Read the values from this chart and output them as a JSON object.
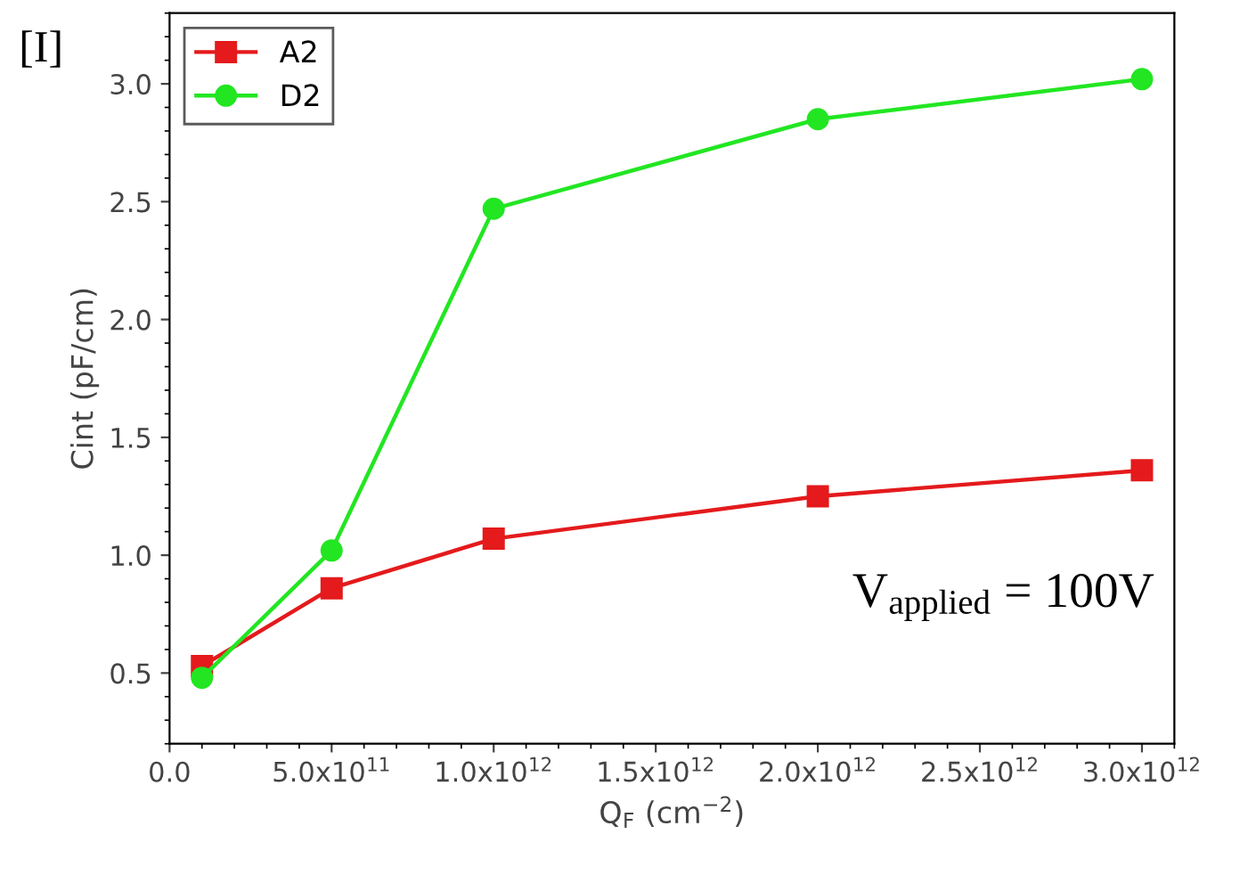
{
  "chart_data": {
    "type": "line",
    "xlabel": "Q$_{F}$ (cm$^{−2}$)",
    "ylabel": "Cint (pF/cm)",
    "annotations": [
      "[I]",
      "V$_{applied}$ = 100V"
    ],
    "x": [
      100000000000.0,
      500000000000.0,
      1000000000000.0,
      2000000000000.0,
      3000000000000.0
    ],
    "series": [
      {
        "name": "A2",
        "color": "#e41a1c",
        "marker": "square",
        "values": [
          0.53,
          0.86,
          1.07,
          1.25,
          1.36
        ]
      },
      {
        "name": "D2",
        "color": "#22e622",
        "marker": "circle",
        "values": [
          0.48,
          1.02,
          2.47,
          2.85,
          3.02
        ]
      }
    ],
    "xlim": [
      0,
      3100000000000.0
    ],
    "xticks": [
      {
        "value": 0,
        "label": "0.0"
      },
      {
        "value": 500000000000.0,
        "label": "5.0x10$^{11}$"
      },
      {
        "value": 1000000000000.0,
        "label": "1.0x10$^{12}$"
      },
      {
        "value": 1500000000000.0,
        "label": "1.5x10$^{12}$"
      },
      {
        "value": 2000000000000.0,
        "label": "2.0x10$^{12}$"
      },
      {
        "value": 2500000000000.0,
        "label": "2.5x10$^{12}$"
      },
      {
        "value": 3000000000000.0,
        "label": "3.0x10$^{12}$"
      }
    ],
    "ylim": [
      0.2,
      3.3
    ],
    "yticks": [
      0.5,
      {
        "value": 1,
        "label": "1.0"
      },
      1.5,
      {
        "value": 2,
        "label": "2.0"
      },
      2.5,
      {
        "value": 3,
        "label": "3.0"
      }
    ],
    "grid": false,
    "legend": "top left",
    "line_style": "solid"
  }
}
